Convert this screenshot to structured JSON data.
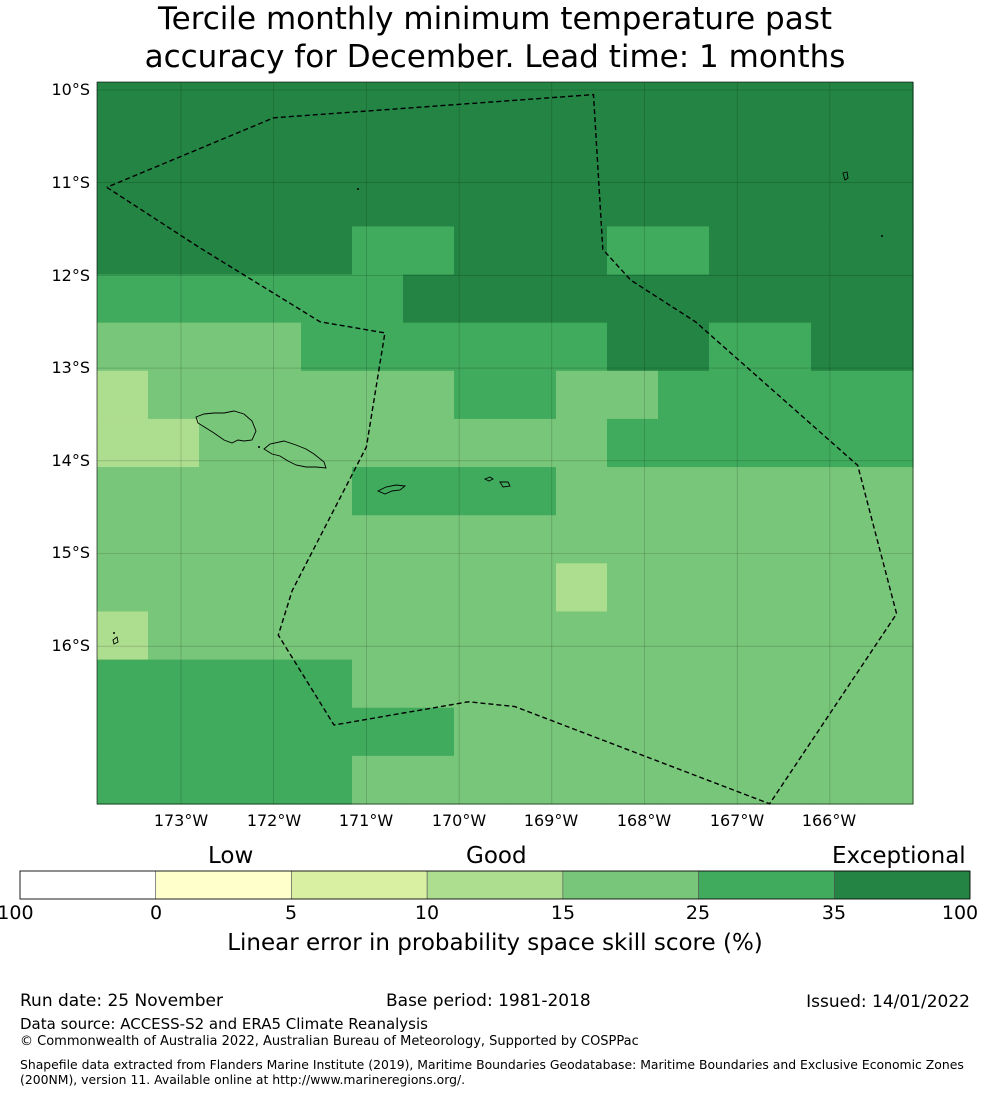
{
  "title_line1": "Tercile monthly minimum temperature past",
  "title_line2": "accuracy for December. Lead time: 1 months",
  "map": {
    "lat_labels": [
      "10°S",
      "11°S",
      "12°S",
      "13°S",
      "14°S",
      "15°S",
      "16°S"
    ],
    "lon_labels": [
      "173°W",
      "172°W",
      "171°W",
      "170°W",
      "169°W",
      "168°W",
      "167°W",
      "166°W"
    ],
    "grid_skill_levels": [
      [
        6,
        6,
        6,
        6,
        6,
        6,
        6,
        6,
        6,
        6,
        6,
        6,
        6,
        6,
        6,
        6
      ],
      [
        6,
        6,
        6,
        6,
        6,
        6,
        6,
        6,
        6,
        6,
        6,
        6,
        6,
        6,
        6,
        6
      ],
      [
        6,
        6,
        6,
        6,
        6,
        6,
        6,
        6,
        6,
        6,
        6,
        6,
        6,
        6,
        6,
        6
      ],
      [
        6,
        6,
        6,
        6,
        6,
        5,
        5,
        6,
        6,
        6,
        5,
        5,
        6,
        6,
        6,
        6
      ],
      [
        5,
        5,
        5,
        5,
        5,
        5,
        6,
        6,
        6,
        6,
        6,
        6,
        6,
        6,
        6,
        6
      ],
      [
        4,
        4,
        4,
        4,
        5,
        5,
        5,
        5,
        5,
        5,
        6,
        6,
        5,
        5,
        6,
        6
      ],
      [
        3,
        4,
        4,
        4,
        4,
        4,
        4,
        5,
        5,
        4,
        4,
        5,
        5,
        5,
        5,
        5
      ],
      [
        3,
        3,
        4,
        4,
        4,
        4,
        4,
        4,
        4,
        4,
        5,
        5,
        5,
        5,
        5,
        5
      ],
      [
        4,
        4,
        4,
        4,
        4,
        5,
        5,
        5,
        5,
        4,
        4,
        4,
        4,
        4,
        4,
        4
      ],
      [
        4,
        4,
        4,
        4,
        4,
        4,
        4,
        4,
        4,
        4,
        4,
        4,
        4,
        4,
        4,
        4
      ],
      [
        4,
        4,
        4,
        4,
        4,
        4,
        4,
        4,
        4,
        3,
        4,
        4,
        4,
        4,
        4,
        4
      ],
      [
        3,
        4,
        4,
        4,
        4,
        4,
        4,
        4,
        4,
        4,
        4,
        4,
        4,
        4,
        4,
        4
      ],
      [
        5,
        5,
        5,
        5,
        5,
        4,
        4,
        4,
        4,
        4,
        4,
        4,
        4,
        4,
        4,
        4
      ],
      [
        5,
        5,
        5,
        5,
        5,
        5,
        5,
        4,
        4,
        4,
        4,
        4,
        4,
        4,
        4,
        4
      ],
      [
        5,
        5,
        5,
        5,
        5,
        4,
        4,
        4,
        4,
        4,
        4,
        4,
        4,
        4,
        4,
        4
      ]
    ],
    "eez_boundary_lonlat": [
      [
        -173.8,
        -11.05
      ],
      [
        -172.8,
        -11.7
      ],
      [
        -171.5,
        -12.5
      ],
      [
        -170.8,
        -12.62
      ],
      [
        -171.0,
        -13.85
      ],
      [
        -171.8,
        -15.4
      ],
      [
        -171.95,
        -15.88
      ],
      [
        -171.35,
        -16.85
      ],
      [
        -169.9,
        -16.6
      ],
      [
        -169.4,
        -16.65
      ],
      [
        -166.65,
        -17.7
      ],
      [
        -165.28,
        -15.65
      ],
      [
        -165.7,
        -14.05
      ],
      [
        -167.45,
        -12.5
      ],
      [
        -168.15,
        -12.05
      ],
      [
        -168.45,
        -11.72
      ],
      [
        -168.55,
        -10.05
      ],
      [
        -172.0,
        -10.3
      ],
      [
        -173.8,
        -11.05
      ]
    ]
  },
  "colorbar": {
    "category_labels": [
      "Low",
      "Good",
      "Exceptional"
    ],
    "ticks": [
      "-100",
      "0",
      "5",
      "10",
      "15",
      "25",
      "35",
      "100"
    ],
    "colors": [
      "#ffffff",
      "#ffffcc",
      "#d9f0a3",
      "#addd8e",
      "#78c679",
      "#41ab5d",
      "#238443"
    ],
    "label": "Linear error in probability space skill score (%)"
  },
  "footer": {
    "run_date": "Run date: 25 November",
    "base_period": "Base period: 1981-2018",
    "issued": "Issued: 14/01/2022",
    "data_source": "Data source: ACCESS-S2 and ERA5 Climate Reanalysis",
    "copyright": "© Commonwealth of Australia 2022, Australian Bureau of Meteorology, Supported by COSPPac",
    "shapefile_note": "Shapefile data extracted from Flanders Marine Institute (2019), Maritime Boundaries Geodatabase: Maritime Boundaries and Exclusive Economic Zones (200NM), version 11. Available online at http://www.marineregions.org/."
  }
}
